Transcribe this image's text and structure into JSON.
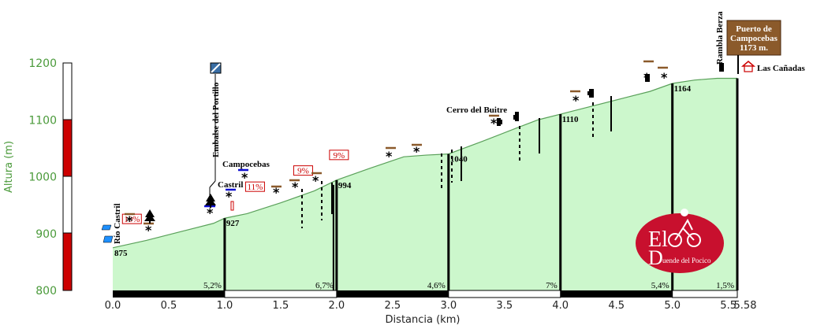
{
  "chart_data": {
    "type": "area",
    "xlabel": "Distancia (km)",
    "ylabel": "Altura (m)",
    "xlim": [
      0,
      5.58
    ],
    "ylim": [
      800,
      1200
    ],
    "x_ticks": [
      "0.0",
      "0.5",
      "1.0",
      "1.5",
      "2.0",
      "2.5",
      "3.0",
      "3.5",
      "4.0",
      "4.5",
      "5.0",
      "5.5",
      "5.58"
    ],
    "y_ticks": [
      "800",
      "900",
      "1000",
      "1100",
      "1200"
    ],
    "profile": {
      "x": [
        0,
        0.3,
        0.6,
        0.9,
        1.0,
        1.2,
        1.5,
        1.8,
        2.0,
        2.3,
        2.6,
        2.8,
        3.0,
        3.3,
        3.6,
        3.8,
        4.0,
        4.3,
        4.6,
        4.8,
        5.0,
        5.2,
        5.4,
        5.5,
        5.58
      ],
      "y": [
        875,
        888,
        903,
        918,
        927,
        935,
        954,
        975,
        994,
        1015,
        1035,
        1038,
        1040,
        1062,
        1085,
        1100,
        1110,
        1125,
        1140,
        1150,
        1164,
        1170,
        1173,
        1173,
        1173
      ]
    },
    "km_elevations": [
      {
        "x": 0,
        "label": "875"
      },
      {
        "x": 1.0,
        "label": "927"
      },
      {
        "x": 2.0,
        "label": "994"
      },
      {
        "x": 3.0,
        "label": "1040"
      },
      {
        "x": 4.0,
        "label": "1110"
      },
      {
        "x": 5.0,
        "label": "1164"
      }
    ],
    "segment_gradients": [
      {
        "x": 0.5,
        "label": "5,2%"
      },
      {
        "x": 1.5,
        "label": "6,7%"
      },
      {
        "x": 2.5,
        "label": "4,6%"
      },
      {
        "x": 3.5,
        "label": "7%"
      },
      {
        "x": 4.5,
        "label": "5,4%"
      },
      {
        "x": 5.29,
        "label": "1,5%"
      }
    ],
    "gradient_flags": [
      {
        "x": 0.15,
        "label": "10%"
      },
      {
        "x": 1.25,
        "label": "11%"
      },
      {
        "x": 1.68,
        "label": "9%"
      },
      {
        "x": 2.0,
        "label": "9%"
      }
    ],
    "place_labels": {
      "rio_castril": "Río Castril",
      "embalse": "Embalse del Portillo",
      "castril": "Castril",
      "campocebas": "Campocebas",
      "cerro": "Cerro del Buitre",
      "rambla": "Rambla Berza",
      "canadas": "Las Cañadas"
    },
    "summit_sign": {
      "line1": "Puerto de",
      "line2": "Campocebas",
      "line3": "1173 m."
    },
    "logo": {
      "big1": "El",
      "big2": "D",
      "rest": "uende del Pocico"
    },
    "colors": {
      "fill": "#ccf7cc",
      "line": "#5aa05a",
      "sign": "#8b5a2b",
      "logo": "#c8102e",
      "bar_red": "#cc0000"
    }
  }
}
